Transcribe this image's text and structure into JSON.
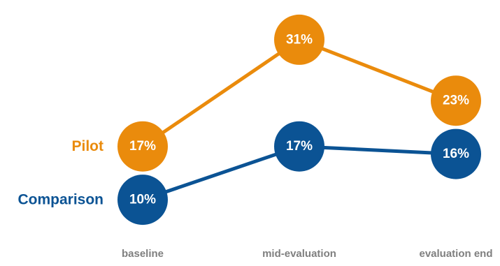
{
  "chart_data": {
    "type": "line",
    "categories": [
      "baseline",
      "mid-evaluation",
      "evaluation end"
    ],
    "series": [
      {
        "name": "Pilot",
        "values": [
          17,
          31,
          23
        ],
        "labels": [
          "17%",
          "31%",
          "23%"
        ],
        "color": "#ea8b0c"
      },
      {
        "name": "Comparison",
        "values": [
          10,
          17,
          16
        ],
        "labels": [
          "10%",
          "17%",
          "16%"
        ],
        "color": "#0b5394"
      }
    ],
    "title": "",
    "xlabel": "",
    "ylabel": "",
    "ylim": [
      9,
      32
    ],
    "grid": false,
    "legend": "left, inline with first point"
  }
}
